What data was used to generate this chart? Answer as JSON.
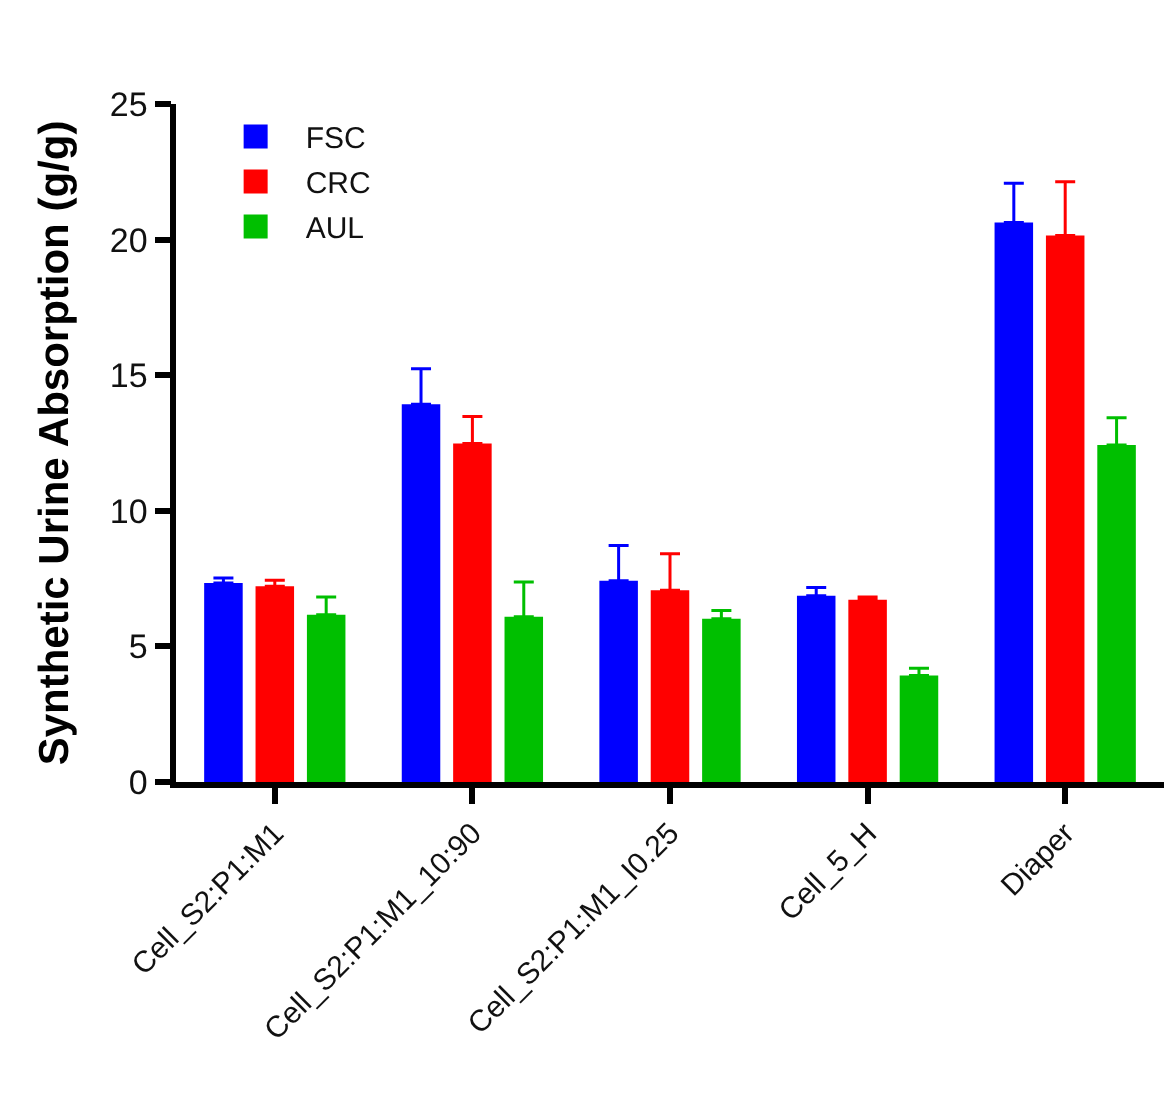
{
  "chart_data": {
    "type": "bar",
    "ylabel": "Synthetic Urine Absorption (g/g)",
    "categories": [
      "Cell_S2:P1:M1",
      "Cell_S2:P1:M1_10:90",
      "Cell_S2:P1:M1_I0.25",
      "Cell_5_H",
      "Diaper"
    ],
    "series": [
      {
        "name": "FSC",
        "color": "#0000ff",
        "values": [
          7.34,
          13.93,
          7.42,
          6.87,
          20.63
        ],
        "errors": [
          [
            7.34,
            7.52
          ],
          [
            13.93,
            15.24
          ],
          [
            7.42,
            8.72
          ],
          [
            6.87,
            7.17
          ],
          [
            20.63,
            22.08
          ]
        ]
      },
      {
        "name": "CRC",
        "color": "#ff0000",
        "values": [
          7.22,
          12.48,
          7.07,
          6.72,
          20.15
        ],
        "errors": [
          [
            7.22,
            7.44
          ],
          [
            12.48,
            13.48
          ],
          [
            7.07,
            8.42
          ],
          [
            6.72,
            6.82
          ],
          [
            20.15,
            22.13
          ]
        ]
      },
      {
        "name": "AUL",
        "color": "#00bf00",
        "values": [
          6.17,
          6.09,
          6.02,
          3.93,
          12.43
        ],
        "errors": [
          [
            6.17,
            6.82
          ],
          [
            6.09,
            7.37
          ],
          [
            6.02,
            6.32
          ],
          [
            3.93,
            4.19
          ],
          [
            12.43,
            13.43
          ]
        ]
      }
    ],
    "ylim": [
      0,
      25
    ],
    "yticks": [
      0,
      5,
      10,
      15,
      20,
      25
    ],
    "legend": "top left"
  }
}
